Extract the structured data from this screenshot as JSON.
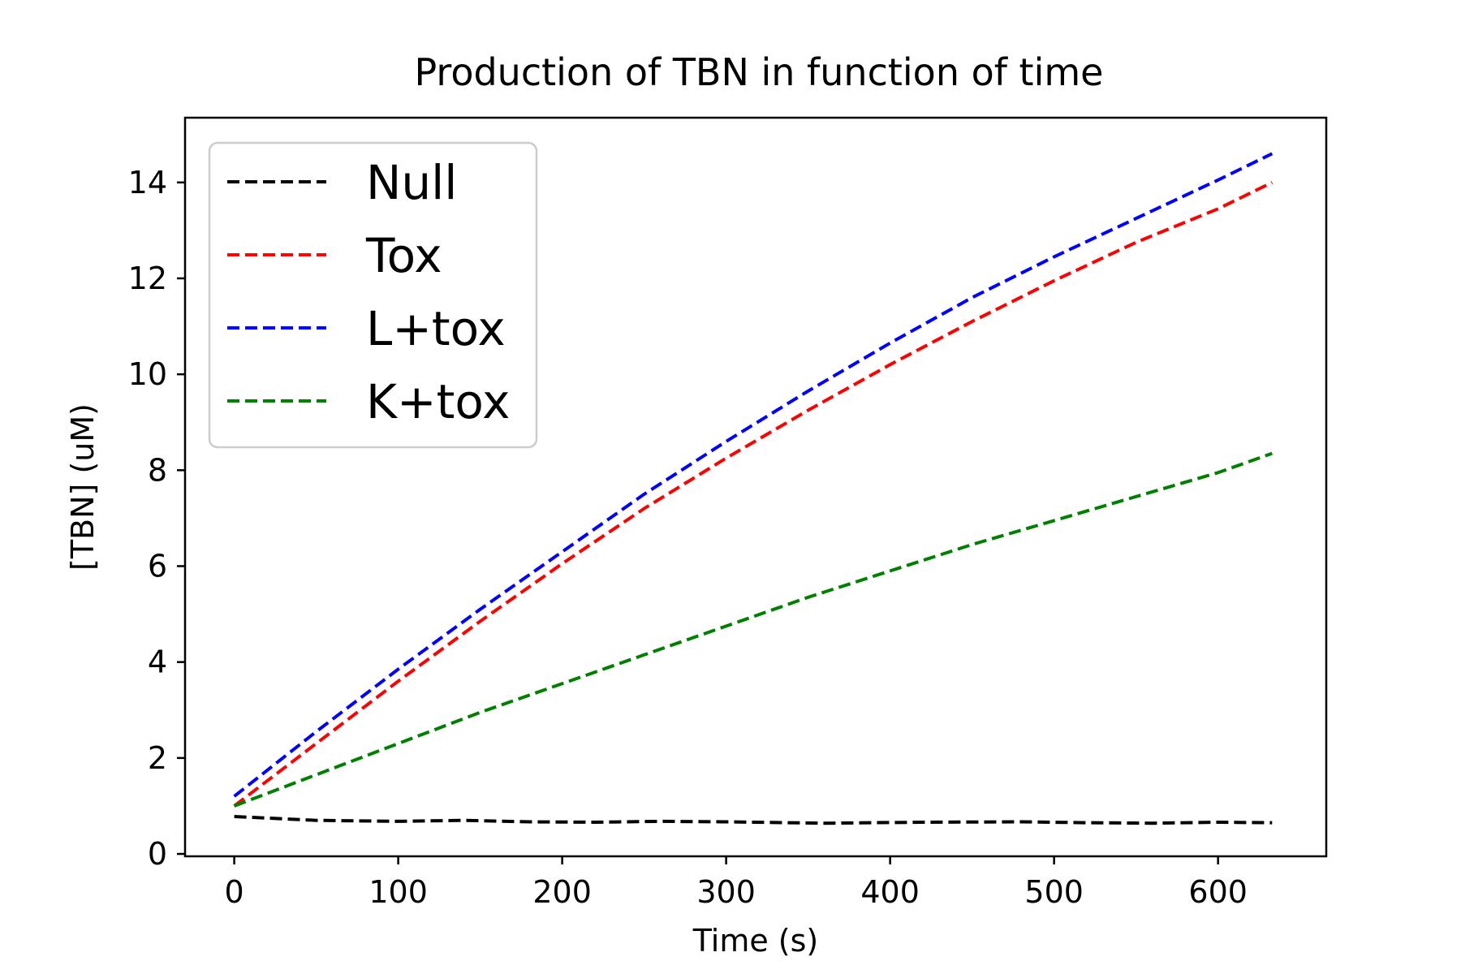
{
  "chart_data": {
    "type": "line",
    "title": "Production of TBN in function of time",
    "xlabel": "Time (s)",
    "ylabel": "[TBN] (uM)",
    "xlim": [
      -30,
      666
    ],
    "ylim": [
      -0.05,
      15.35
    ],
    "x_ticks": [
      0,
      100,
      200,
      300,
      400,
      500,
      600
    ],
    "y_ticks": [
      0,
      2,
      4,
      6,
      8,
      10,
      12,
      14
    ],
    "grid": false,
    "legend": "top-left",
    "line_style": "dashed",
    "series": [
      {
        "name": "Null",
        "color": "#000000",
        "x": [
          0,
          50,
          100,
          140,
          180,
          220,
          260,
          300,
          360,
          420,
          480,
          520,
          560,
          600,
          633
        ],
        "y": [
          0.78,
          0.7,
          0.68,
          0.7,
          0.67,
          0.66,
          0.68,
          0.67,
          0.64,
          0.66,
          0.67,
          0.65,
          0.64,
          0.66,
          0.65
        ]
      },
      {
        "name": "Tox",
        "color": "#ff0000",
        "x": [
          0,
          50,
          100,
          150,
          200,
          250,
          300,
          350,
          400,
          450,
          500,
          550,
          600,
          633
        ],
        "y": [
          1.0,
          2.3,
          3.6,
          4.85,
          6.05,
          7.2,
          8.25,
          9.25,
          10.2,
          11.1,
          11.95,
          12.75,
          13.45,
          14.0
        ]
      },
      {
        "name": "L+tox",
        "color": "#0000ff",
        "x": [
          0,
          50,
          100,
          150,
          200,
          250,
          300,
          350,
          400,
          450,
          500,
          550,
          600,
          633
        ],
        "y": [
          1.2,
          2.55,
          3.85,
          5.1,
          6.3,
          7.5,
          8.6,
          9.65,
          10.65,
          11.6,
          12.45,
          13.25,
          14.05,
          14.6
        ]
      },
      {
        "name": "K+tox",
        "color": "#008000",
        "x": [
          0,
          50,
          100,
          150,
          200,
          250,
          300,
          350,
          400,
          450,
          500,
          550,
          600,
          633
        ],
        "y": [
          1.0,
          1.65,
          2.3,
          2.95,
          3.55,
          4.15,
          4.75,
          5.35,
          5.9,
          6.45,
          6.95,
          7.45,
          7.95,
          8.35
        ]
      }
    ]
  }
}
